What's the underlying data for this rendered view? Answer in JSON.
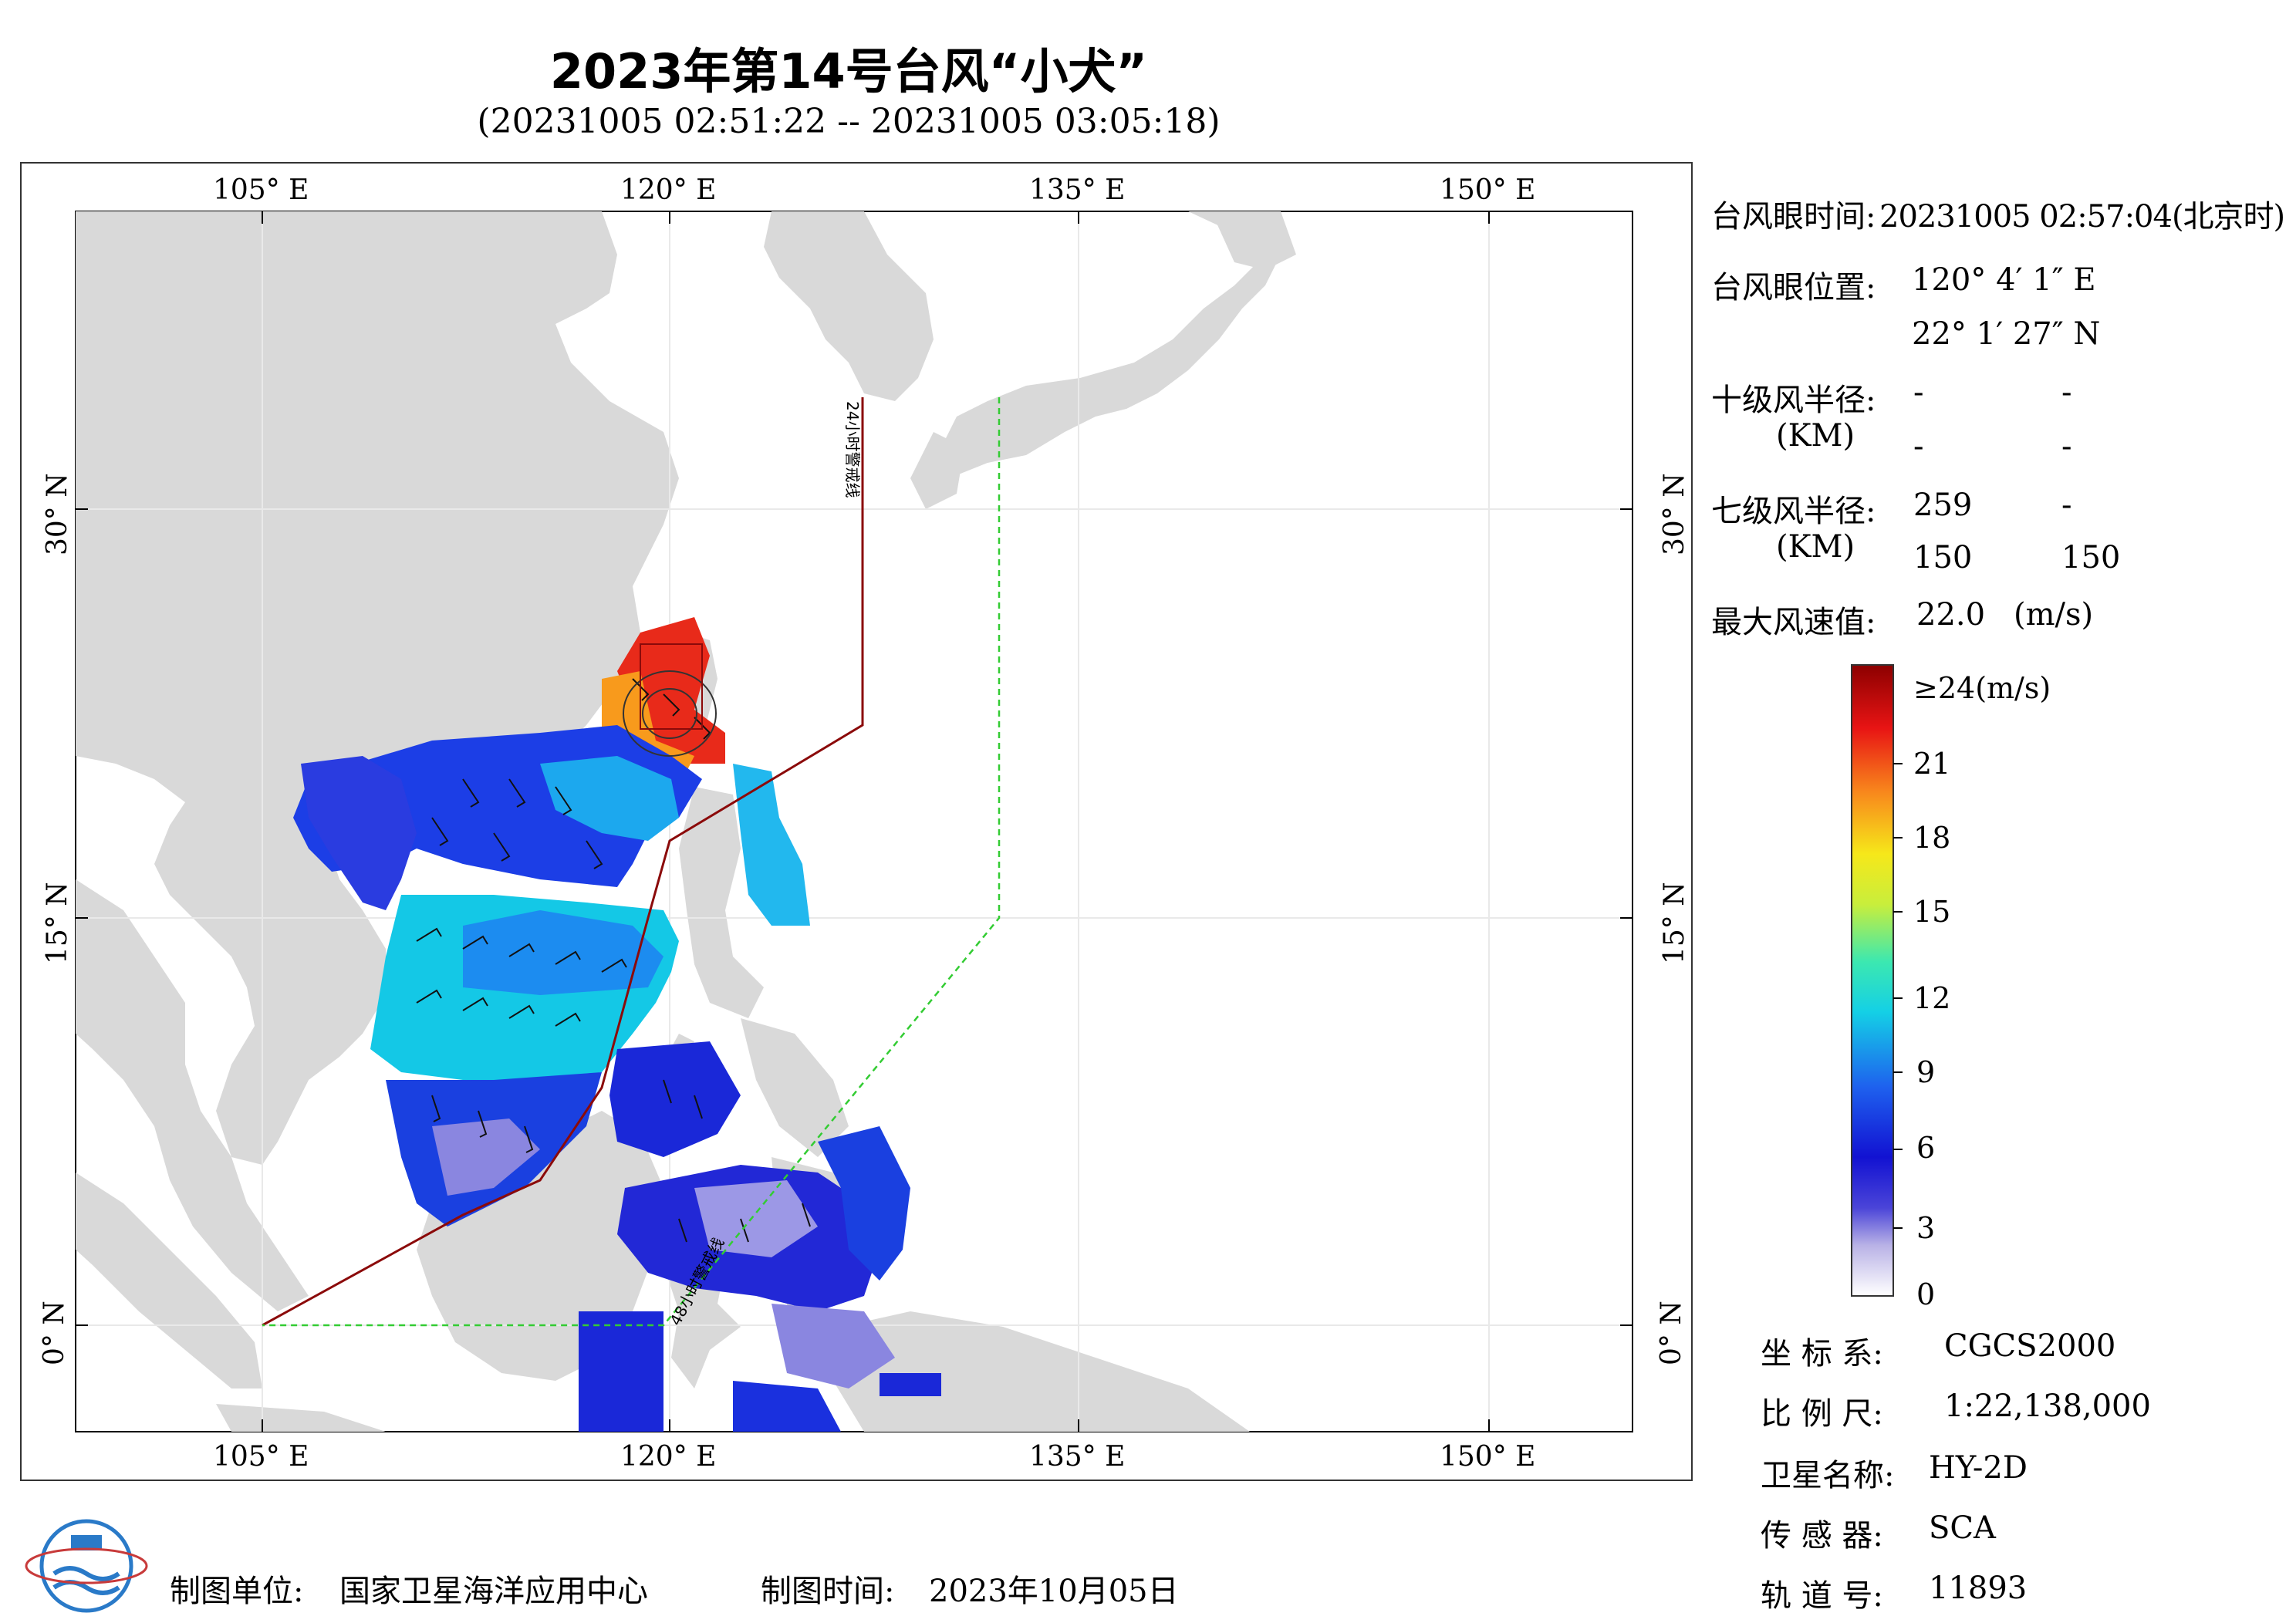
{
  "header": {
    "title": "2023年第14号台风“小犬”",
    "time_range": "(20231005 02:51:22 -- 20231005 03:05:18)"
  },
  "map": {
    "lon_labels": [
      "105° E",
      "120° E",
      "135° E",
      "150° E"
    ],
    "lat_labels": [
      "30° N",
      "15° N",
      "0° N"
    ],
    "warning_24h_label": "24小时警戒线",
    "warning_48h_label": "48小时警戒线",
    "land_color": "#d9d9d9",
    "sea_color": "#ffffff"
  },
  "typhoon_info": {
    "eye_time_label": "台风眼时间:",
    "eye_time_value": "20231005 02:57:04(北京时)",
    "eye_pos_label": "台风眼位置:",
    "eye_lon": "120° 4′ 1″ E",
    "eye_lat": "22° 1′ 27″ N",
    "r10_label": "十级风半径:",
    "km_label": "(KM)",
    "r10_values": [
      "-",
      "-",
      "-",
      "-"
    ],
    "r7_label": "七级风半径:",
    "r7_values": [
      "259",
      "-",
      "150",
      "150"
    ],
    "max_wind_label": "最大风速值:",
    "max_wind_value": "22.0",
    "max_wind_unit": "(m/s)"
  },
  "colorbar": {
    "labels": [
      "≥24(m/s)",
      "21",
      "18",
      "15",
      "12",
      "9",
      "6",
      "3",
      "0"
    ]
  },
  "metadata": [
    {
      "label": "坐 标 系:",
      "value": "CGCS2000"
    },
    {
      "label": "比 例 尺:",
      "value": "1:22,138,000"
    },
    {
      "label": "卫星名称:",
      "value": "HY-2D"
    },
    {
      "label": "传 感 器:",
      "value": "SCA"
    },
    {
      "label": "轨 道 号:",
      "value": "11893"
    }
  ],
  "footer": {
    "org_label": "制图单位:",
    "org_value": "国家卫星海洋应用中心",
    "date_label": "制图时间:",
    "date_value": "2023年10月05日"
  }
}
